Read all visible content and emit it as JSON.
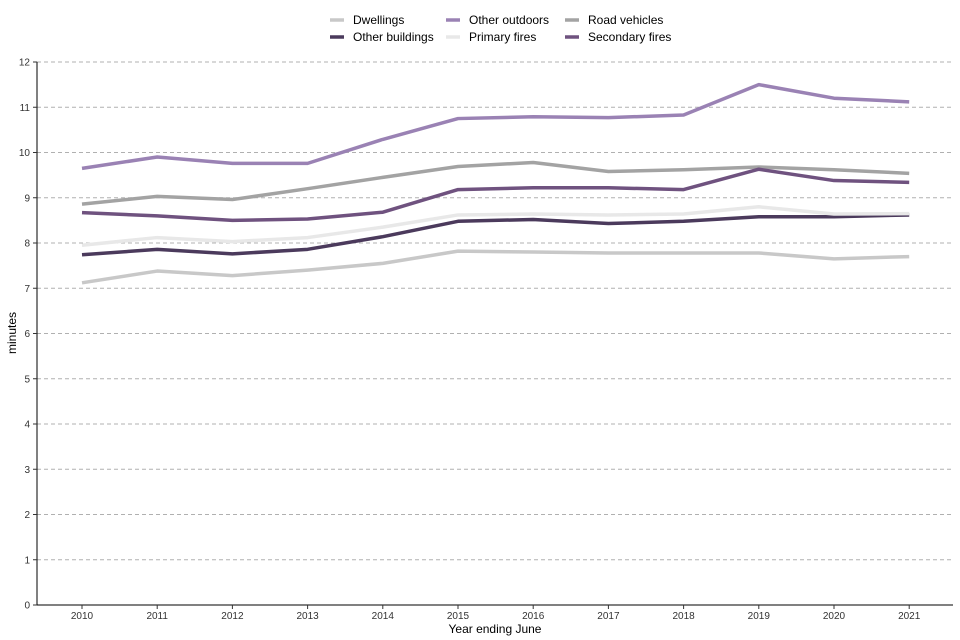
{
  "chart_data": {
    "type": "line",
    "xlabel": "Year ending June",
    "ylabel": "minutes",
    "ylim": [
      0,
      12
    ],
    "yticks": [
      0,
      1,
      2,
      3,
      4,
      5,
      6,
      7,
      8,
      9,
      10,
      11,
      12
    ],
    "grid": "horizontal dashed",
    "legend": "top-center",
    "x": [
      "2010",
      "2011",
      "2012",
      "2013",
      "2014",
      "2015",
      "2016",
      "2017",
      "2018",
      "2019",
      "2020",
      "2021"
    ],
    "series": [
      {
        "name": "Dwellings",
        "color": "#c8c8c8",
        "values": [
          7.12,
          7.38,
          7.28,
          7.4,
          7.55,
          7.82,
          7.8,
          7.78,
          7.78,
          7.78,
          7.65,
          7.7
        ]
      },
      {
        "name": "Other buildings",
        "color": "#4b3a5c",
        "values": [
          7.74,
          7.86,
          7.76,
          7.86,
          8.14,
          8.48,
          8.52,
          8.43,
          8.48,
          8.58,
          8.58,
          8.62
        ]
      },
      {
        "name": "Other outdoors",
        "color": "#9a82b4",
        "values": [
          9.65,
          9.9,
          9.76,
          9.76,
          10.29,
          10.75,
          10.79,
          10.77,
          10.83,
          11.5,
          11.2,
          11.12
        ]
      },
      {
        "name": "Primary fires",
        "color": "#e8e8e8",
        "values": [
          7.95,
          8.12,
          8.03,
          8.12,
          8.35,
          8.62,
          8.64,
          8.62,
          8.64,
          8.8,
          8.64,
          8.65
        ]
      },
      {
        "name": "Road vehicles",
        "color": "#a3a3a3",
        "values": [
          8.86,
          9.03,
          8.96,
          9.2,
          9.45,
          9.69,
          9.78,
          9.58,
          9.62,
          9.68,
          9.62,
          9.54
        ]
      },
      {
        "name": "Secondary fires",
        "color": "#6f527f",
        "values": [
          8.67,
          8.6,
          8.5,
          8.53,
          8.68,
          9.18,
          9.22,
          9.22,
          9.18,
          9.63,
          9.38,
          9.34
        ]
      }
    ]
  }
}
